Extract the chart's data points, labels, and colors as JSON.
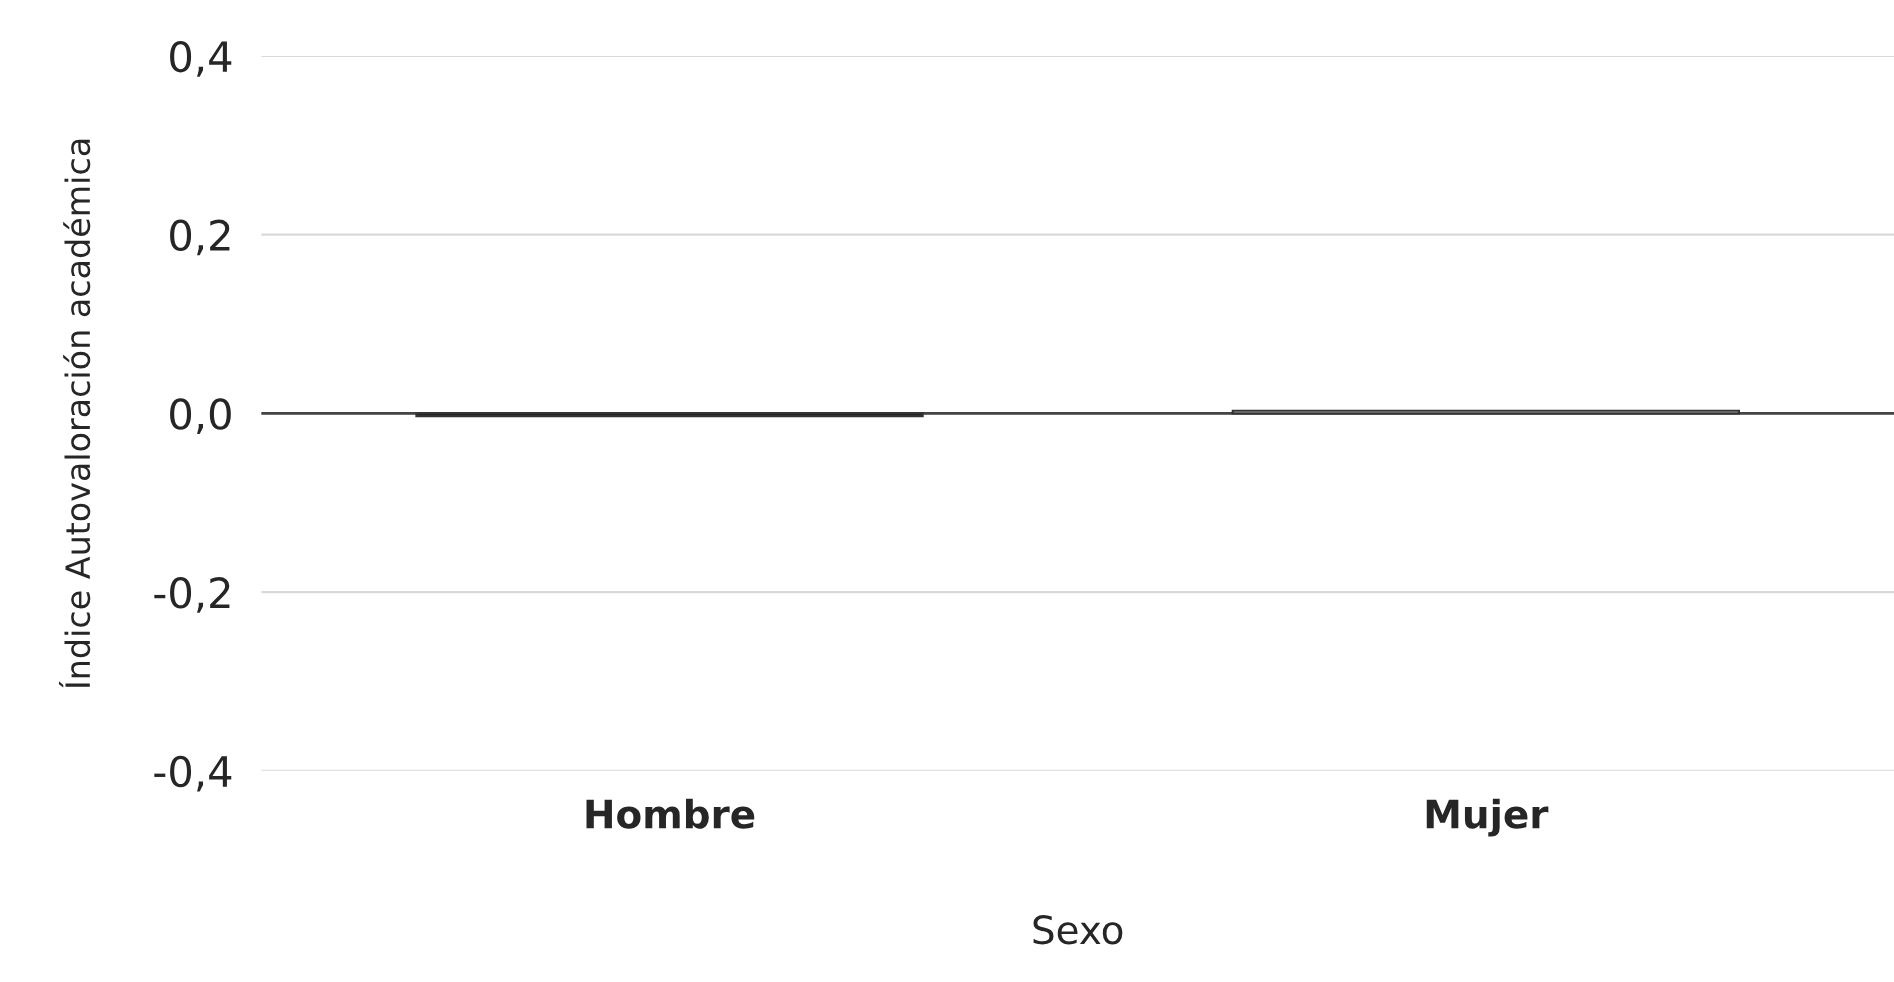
{
  "chart_data": {
    "type": "bar",
    "xlabel": "Sexo",
    "ylabel": "Índice Autovaloración académica",
    "categories": [
      "Hombre",
      "Mujer"
    ],
    "values": [
      -0.003,
      0.003
    ],
    "colors": [
      "#1a1a1a",
      "#ffffff"
    ],
    "ylim": [
      -0.4,
      0.4
    ],
    "yticks": [
      {
        "value": -0.4,
        "label": "-0,4"
      },
      {
        "value": -0.2,
        "label": "-0,2"
      },
      {
        "value": 0,
        "label": "0,0"
      },
      {
        "value": 0.2,
        "label": "0,2"
      },
      {
        "value": 0.4,
        "label": "0,4"
      }
    ],
    "grid": "y",
    "legend": false
  }
}
